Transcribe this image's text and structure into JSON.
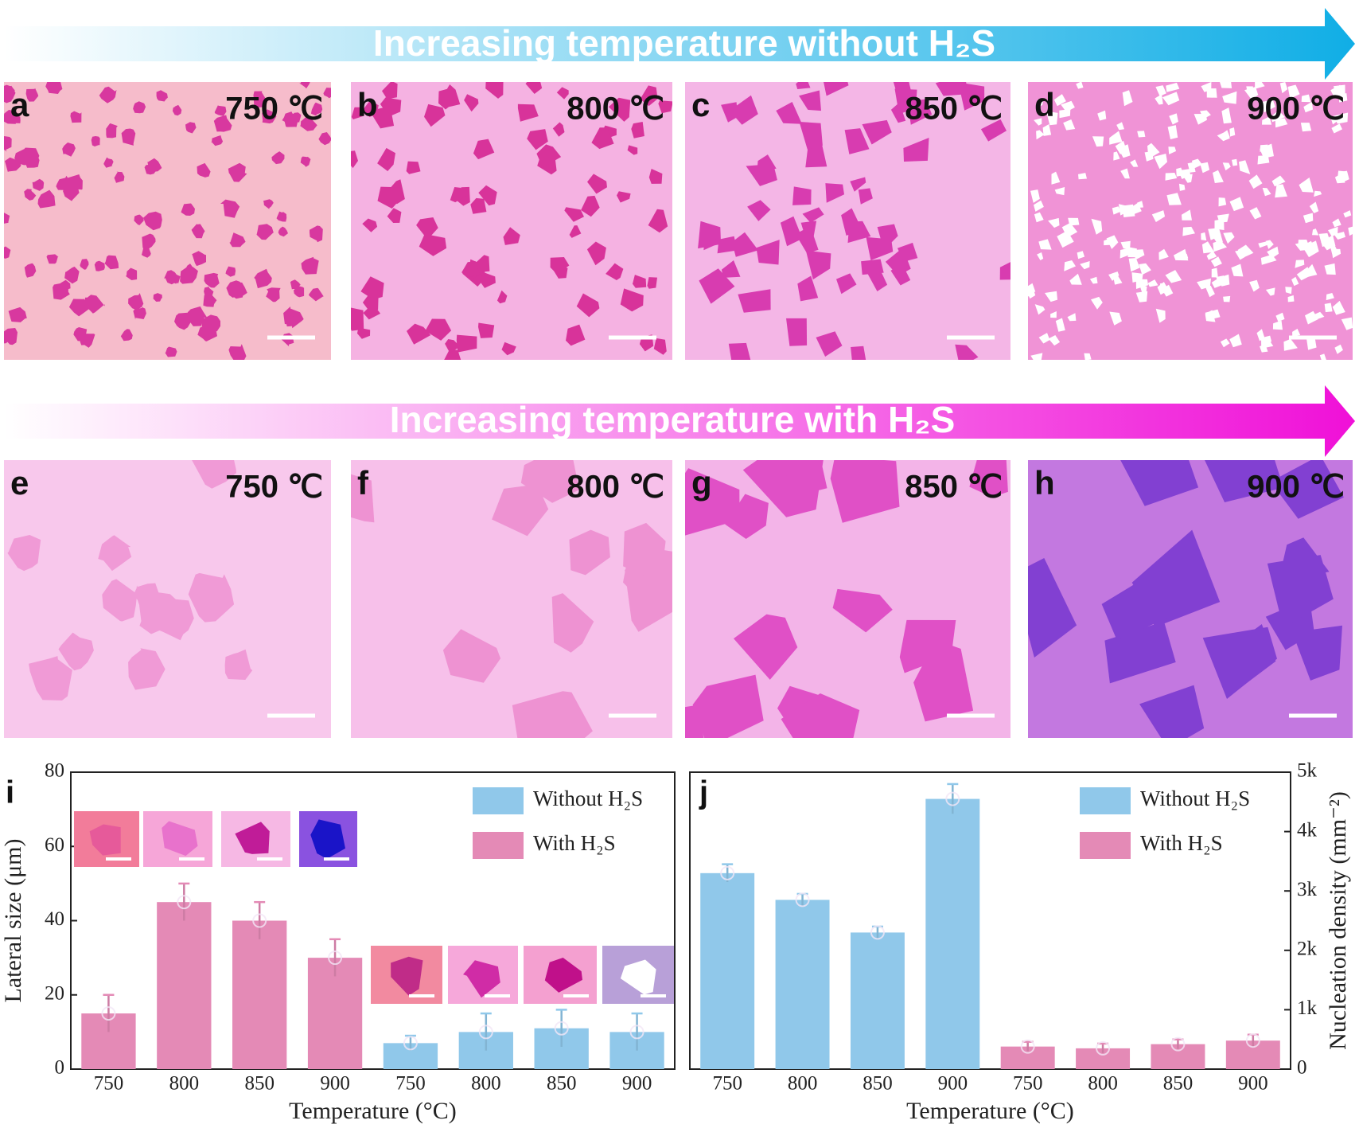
{
  "banners": [
    "Increasing temperature without H₂S",
    "Increasing temperature with H₂S"
  ],
  "panels": [
    {
      "letter": "a",
      "temperature": "750 ℃"
    },
    {
      "letter": "b",
      "temperature": "800 ℃"
    },
    {
      "letter": "c",
      "temperature": "850 ℃"
    },
    {
      "letter": "d",
      "temperature": "900 ℃"
    },
    {
      "letter": "e",
      "temperature": "750 ℃"
    },
    {
      "letter": "f",
      "temperature": "800 ℃"
    },
    {
      "letter": "g",
      "temperature": "850 ℃"
    },
    {
      "letter": "h",
      "temperature": "900 ℃"
    }
  ],
  "chart_data": [
    {
      "type": "bar",
      "panel_label": "i",
      "x_label": "Temperature (°C)",
      "y_label": "Lateral size (μm)",
      "categories": [
        "750",
        "800",
        "850",
        "900",
        "750",
        "800",
        "850",
        "900"
      ],
      "ylim": [
        0,
        80
      ],
      "yticks": [
        0,
        20,
        40,
        60,
        80
      ],
      "legend": "upper right",
      "series": [
        {
          "name": "Without H₂S",
          "color": "#90c8ea",
          "values": [
            null,
            null,
            null,
            null,
            7,
            10,
            11,
            10
          ],
          "errors": [
            null,
            null,
            null,
            null,
            2,
            5,
            5,
            5
          ]
        },
        {
          "name": "With H₂S",
          "color": "#e48ab6",
          "values": [
            15,
            45,
            40,
            30,
            null,
            null,
            null,
            null
          ],
          "errors": [
            5,
            5,
            5,
            5,
            null,
            null,
            null,
            null
          ]
        }
      ]
    },
    {
      "type": "bar",
      "panel_label": "j",
      "x_label": "Temperature (°C)",
      "y_label": "Nucleation density (mm⁻²)",
      "categories": [
        "750",
        "800",
        "850",
        "900",
        "750",
        "800",
        "850",
        "900"
      ],
      "y2lim": [
        0,
        5000
      ],
      "y2ticks": [
        0,
        {
          "value": 1000,
          "label": "1k"
        },
        {
          "value": 2000,
          "label": "2k"
        },
        {
          "value": 3000,
          "label": "3k"
        },
        {
          "value": 4000,
          "label": "4k"
        },
        {
          "value": 5000,
          "label": "5k"
        }
      ],
      "legend": "upper right",
      "series": [
        {
          "name": "Without H₂S",
          "color": "#90c8ea",
          "axis": "y2",
          "values": [
            3300,
            2850,
            2300,
            4550,
            null,
            null,
            null,
            null
          ],
          "errors": [
            150,
            100,
            100,
            250,
            null,
            null,
            null,
            null
          ]
        },
        {
          "name": "With H₂S",
          "color": "#e48ab6",
          "axis": "y2",
          "values": [
            null,
            null,
            null,
            null,
            380,
            350,
            420,
            480
          ],
          "errors": [
            null,
            null,
            null,
            null,
            80,
            80,
            80,
            100
          ]
        }
      ]
    }
  ]
}
